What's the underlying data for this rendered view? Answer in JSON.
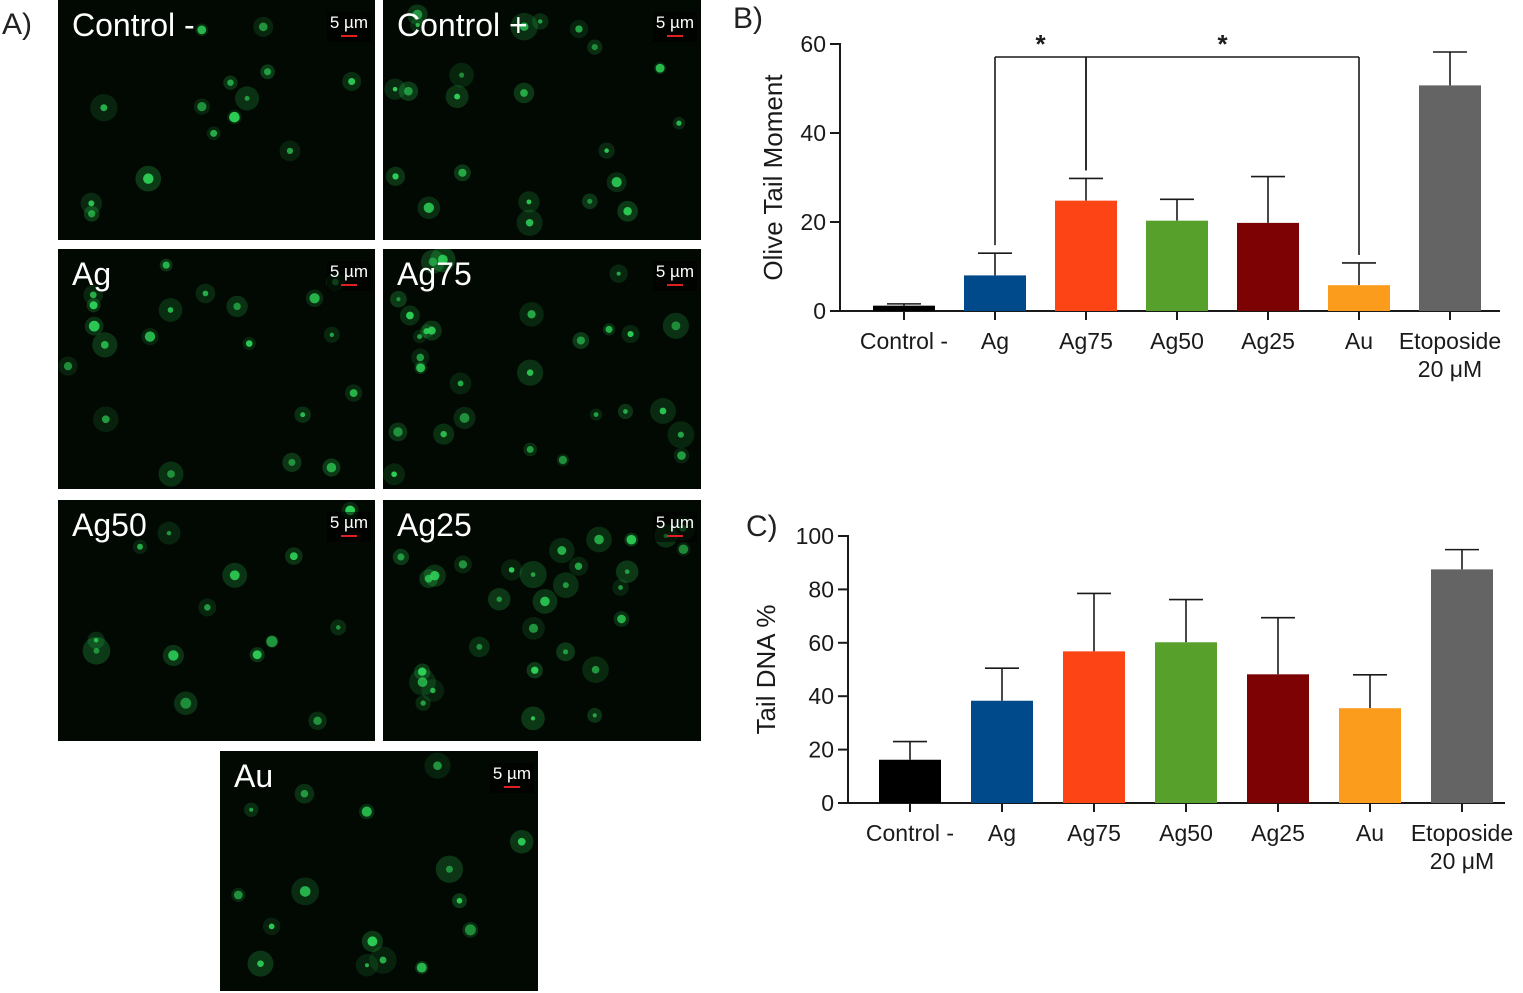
{
  "panels": {
    "a_letter": "A)",
    "b_letter": "B)",
    "c_letter": "C)"
  },
  "micrographs": [
    {
      "label": "Control -",
      "scale": "5 µm"
    },
    {
      "label": "Control +",
      "scale": "5 µm"
    },
    {
      "label": "Ag",
      "scale": "5 µm"
    },
    {
      "label": "Ag75",
      "scale": "5 µm"
    },
    {
      "label": "Ag50",
      "scale": "5 µm"
    },
    {
      "label": "Ag25",
      "scale": "5 µm"
    },
    {
      "label": "Au",
      "scale": "5 µm"
    }
  ],
  "colors": {
    "Control -": "#000000",
    "Ag": "#004a8c",
    "Ag75": "#fc4414",
    "Ag50": "#58a02c",
    "Ag25": "#7c0204",
    "Au": "#fc9c1c",
    "Etoposide": "#646464",
    "cells": "#2fd85a"
  },
  "chart_data": [
    {
      "type": "bar",
      "panel": "B)",
      "ylabel": "Olive Tail Moment",
      "categories": [
        "Control -",
        "Ag",
        "Ag75",
        "Ag50",
        "Ag25",
        "Au",
        "Etoposide 20 μM"
      ],
      "category_lines": [
        [
          "Control -"
        ],
        [
          "Ag"
        ],
        [
          "Ag75"
        ],
        [
          "Ag50"
        ],
        [
          "Ag25"
        ],
        [
          "Au"
        ],
        [
          "Etoposide",
          "20 μM"
        ]
      ],
      "values": [
        1.2,
        8.0,
        24.8,
        20.3,
        19.8,
        5.8,
        50.7
      ],
      "errors": [
        0.4,
        5.0,
        5.0,
        4.8,
        10.4,
        5.0,
        7.5
      ],
      "ylim": [
        0,
        60
      ],
      "yticks": [
        0,
        20,
        40,
        60
      ],
      "significance": [
        {
          "from": "Ag",
          "to": "Ag75",
          "label": "*"
        },
        {
          "from": "Ag75",
          "to": "Au",
          "label": "*"
        }
      ]
    },
    {
      "type": "bar",
      "panel": "C)",
      "ylabel": "Tail DNA %",
      "categories": [
        "Control -",
        "Ag",
        "Ag75",
        "Ag50",
        "Ag25",
        "Au",
        "Etoposide 20 μM"
      ],
      "category_lines": [
        [
          "Control -"
        ],
        [
          "Ag"
        ],
        [
          "Ag75"
        ],
        [
          "Ag50"
        ],
        [
          "Ag25"
        ],
        [
          "Au"
        ],
        [
          "Etoposide",
          "20 μM"
        ]
      ],
      "values": [
        16.2,
        38.3,
        56.8,
        60.2,
        48.2,
        35.5,
        87.5
      ],
      "errors": [
        6.8,
        12.2,
        21.7,
        16.0,
        21.2,
        12.5,
        7.4
      ],
      "ylim": [
        0,
        100
      ],
      "yticks": [
        0,
        20,
        40,
        60,
        80,
        100
      ]
    }
  ]
}
